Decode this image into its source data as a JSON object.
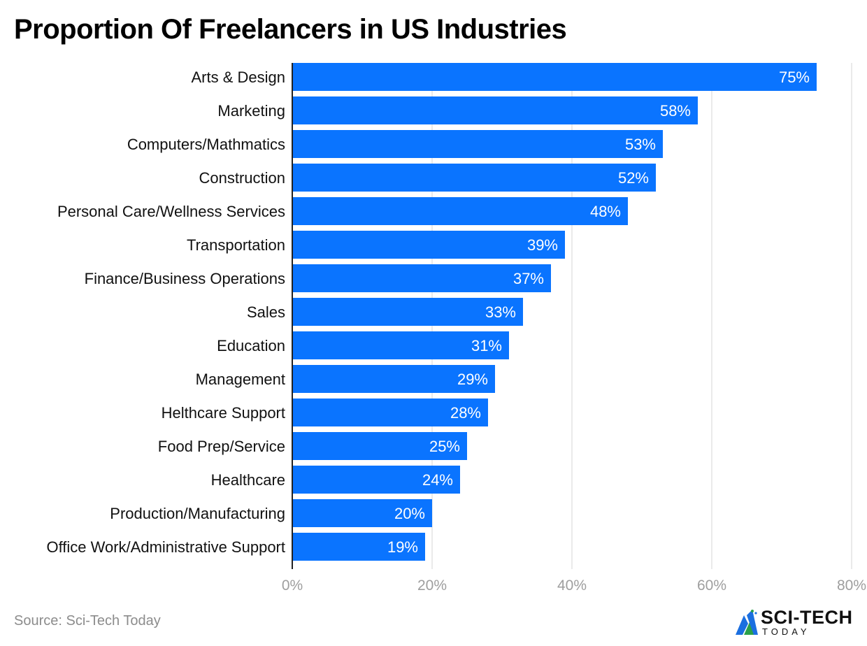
{
  "chart_data": {
    "type": "bar",
    "orientation": "horizontal",
    "title": "Proportion Of Freelancers in US Industries",
    "categories": [
      "Arts & Design",
      "Marketing",
      "Computers/Mathmatics",
      "Construction",
      "Personal Care/Wellness Services",
      "Transportation",
      "Finance/Business Operations",
      "Sales",
      "Education",
      "Management",
      "Helthcare Support",
      "Food Prep/Service",
      "Healthcare",
      "Production/Manufacturing",
      "Office Work/Administrative Support"
    ],
    "values": [
      75,
      58,
      53,
      52,
      48,
      39,
      37,
      33,
      31,
      29,
      28,
      25,
      24,
      20,
      19
    ],
    "data_labels": [
      "75%",
      "58%",
      "53%",
      "52%",
      "48%",
      "39%",
      "37%",
      "33%",
      "31%",
      "29%",
      "28%",
      "25%",
      "24%",
      "20%",
      "19%"
    ],
    "xlim": [
      0,
      80
    ],
    "x_ticks": [
      0,
      20,
      40,
      60,
      80
    ],
    "x_tick_labels": [
      "0%",
      "20%",
      "40%",
      "60%",
      "80%"
    ],
    "xlabel": "",
    "ylabel": "",
    "grid": true,
    "bar_color": "#0a74ff",
    "grid_color": "#e3e3e3",
    "label_color": "#ffffff",
    "tick_color": "#9e9e9e"
  },
  "source": "Source: Sci-Tech Today",
  "logo": {
    "main": "SCI-TECH",
    "sub": "TODAY"
  }
}
